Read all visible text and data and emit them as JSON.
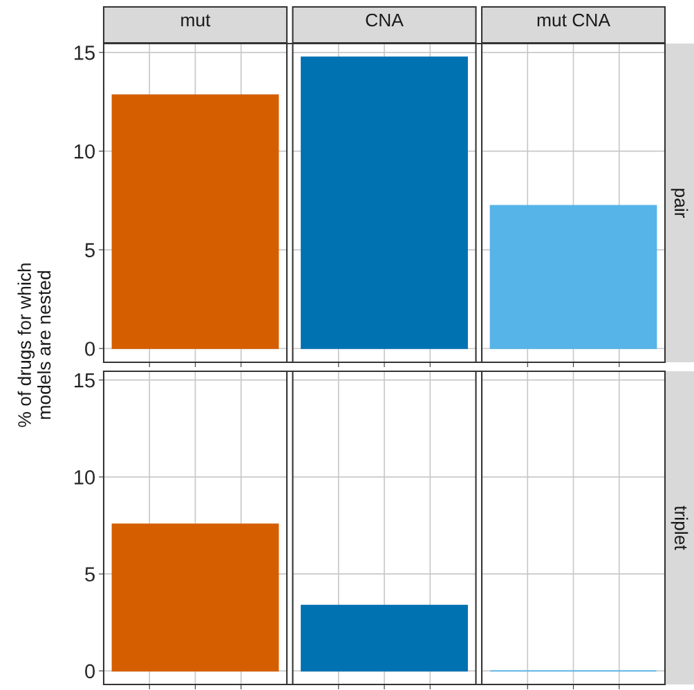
{
  "chart_data": [
    {
      "type": "bar",
      "ylabel": "% of drugs for which\nmodels are nested",
      "y2label": "pair",
      "categories": [
        "mut",
        "CNA",
        "mut CNA"
      ],
      "values": [
        12.85,
        14.76,
        7.24
      ],
      "colors": [
        "#d55e00",
        "#0072b2",
        "#56b4e9"
      ],
      "ylim": [
        -0.7,
        15.45
      ],
      "yticks": [
        0,
        5,
        10,
        15
      ],
      "grid": true
    },
    {
      "type": "bar",
      "y2label": "triplet",
      "categories": [
        null,
        null,
        null
      ],
      "values": [
        7.57,
        3.38,
        0
      ],
      "colors": [
        "#d55e00",
        "#0072b2",
        "#56b4e9"
      ],
      "ylim": [
        -0.7,
        15.45
      ],
      "yticks": [
        0,
        5,
        10,
        15
      ],
      "grid": true,
      "tick_labels": "y"
    }
  ]
}
